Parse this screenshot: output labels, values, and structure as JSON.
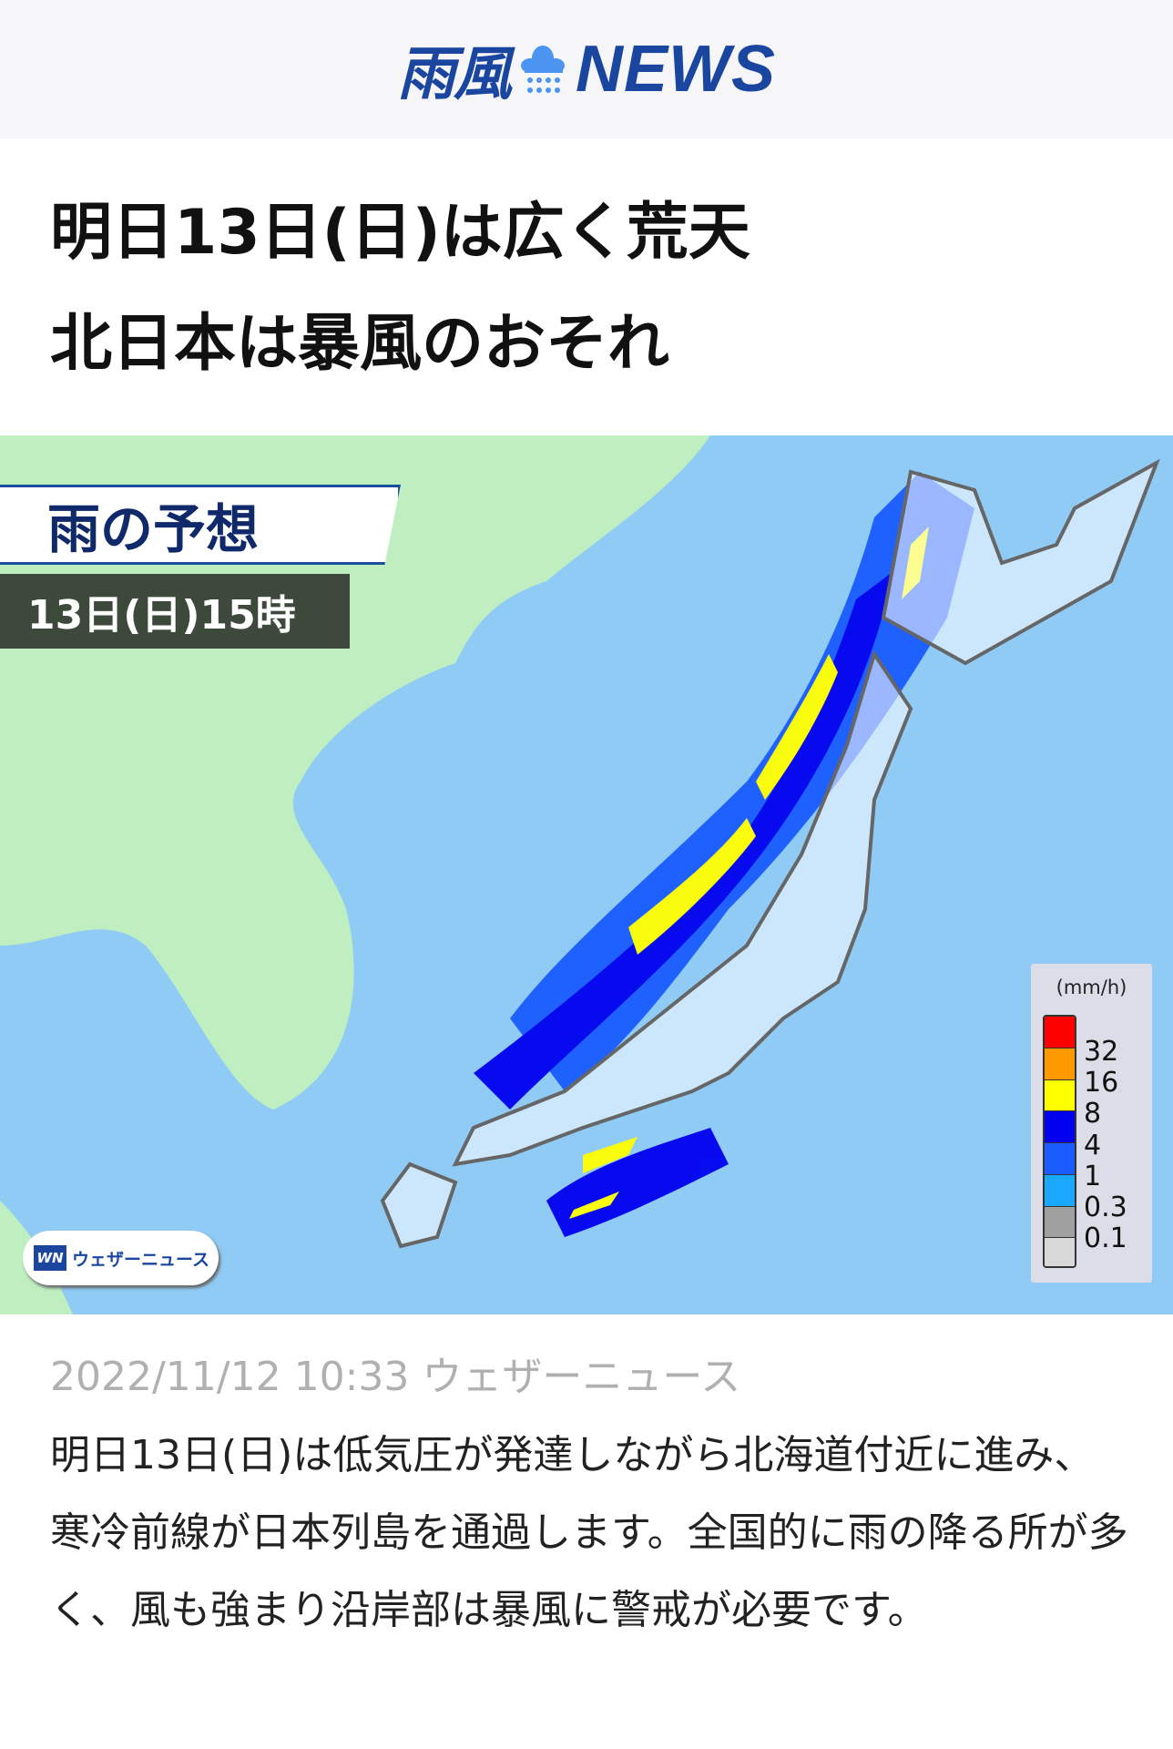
{
  "header": {
    "logo_jp": "雨風",
    "logo_en": "NEWS",
    "logo_icon": "cloud-rain-icon",
    "brand_color": "#1a46a0"
  },
  "article": {
    "title_lines": [
      "明日13日(日)は広く荒天",
      "北日本は暴風のおそれ"
    ],
    "date": "2022/11/12 10:33",
    "source": "ウェザーニュース",
    "body": "明日13日(日)は低気圧が発達しながら北海道付近に進み、寒冷前線が日本列島を通過します。全国的に雨の降る所が多く、風も強まり沿岸部は暴風に警戒が必要です。"
  },
  "map": {
    "label": "雨の予想",
    "time": "13日(日)15時",
    "watermark": "ウェザーニュース",
    "watermark_mark": "WN",
    "legend": {
      "unit": "(mm/h)",
      "levels": [
        "32",
        "16",
        "8",
        "4",
        "1",
        "0.3",
        "0.1"
      ],
      "colors": [
        "#ff0000",
        "#ff9900",
        "#ffff00",
        "#0000ee",
        "#1a5cff",
        "#1aa8ff",
        "#a0a0a0",
        "#d8d8d8"
      ]
    }
  }
}
